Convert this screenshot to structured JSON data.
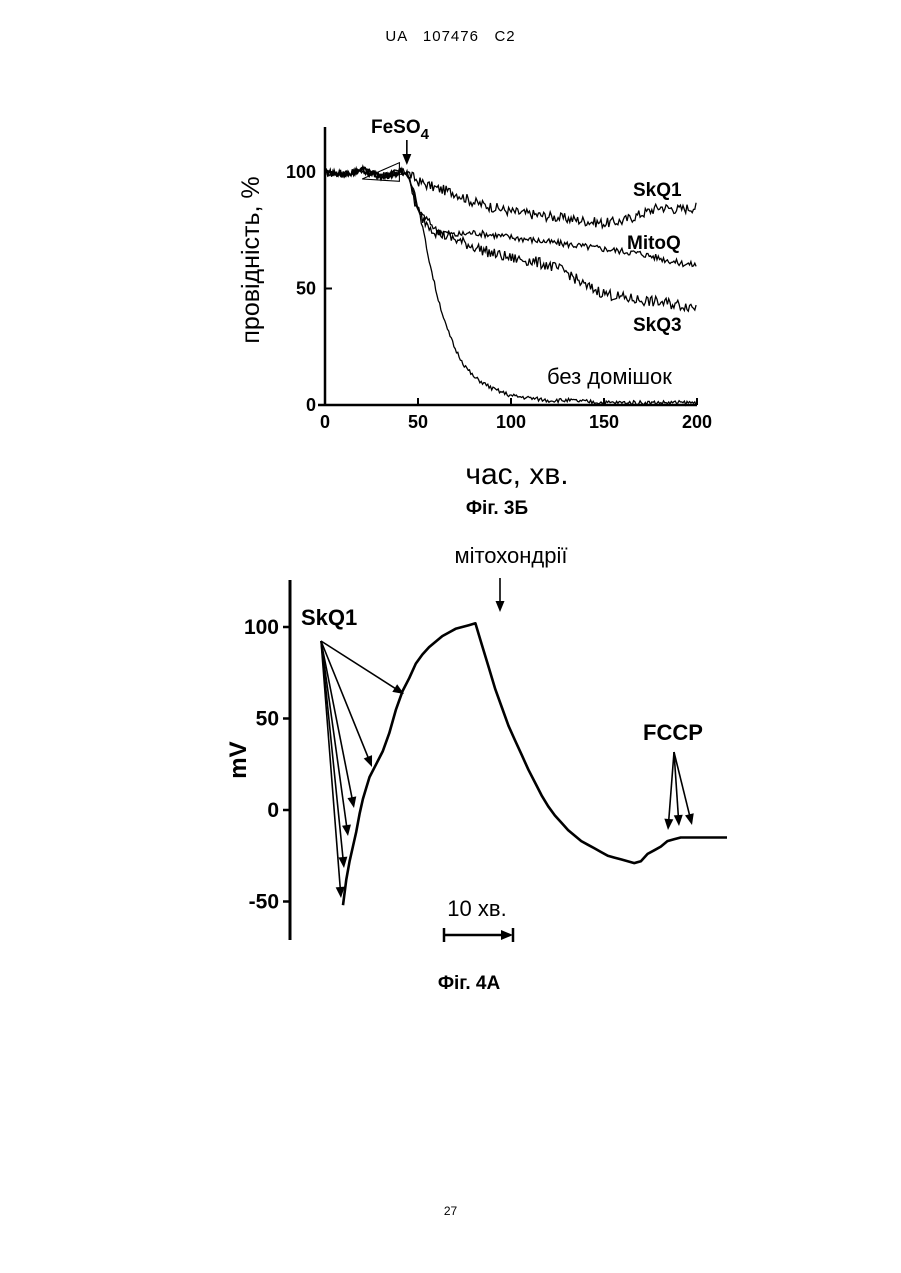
{
  "header": {
    "text": "UA   107476   C2"
  },
  "page_number": "27",
  "chart_data": [
    {
      "type": "line",
      "caption": "Фіг. 3Б",
      "xlabel": "час, хв.",
      "ylabel": "провідність, %",
      "xlim": [
        0,
        200
      ],
      "ylim": [
        0,
        120
      ],
      "xticks": [
        "0",
        "50",
        "100",
        "150",
        "200"
      ],
      "yticks": [
        "0",
        "50",
        "100"
      ],
      "annotation": "FeSO",
      "annotation_sub": "4",
      "annotation_x": 44,
      "series": [
        {
          "name": "SkQ1",
          "x": [
            0,
            10,
            20,
            30,
            40,
            44,
            50,
            60,
            70,
            80,
            90,
            100,
            110,
            120,
            130,
            140,
            150,
            160,
            170,
            180,
            190,
            200
          ],
          "y": [
            100,
            99,
            101,
            98,
            100,
            100,
            96,
            93,
            91,
            87,
            85,
            83,
            82,
            81,
            80,
            79,
            78,
            79,
            82,
            85,
            84,
            85
          ]
        },
        {
          "name": "MitoQ",
          "x": [
            0,
            10,
            20,
            30,
            40,
            44,
            50,
            60,
            70,
            80,
            90,
            100,
            110,
            120,
            130,
            140,
            150,
            160,
            170,
            180,
            190,
            200
          ],
          "y": [
            100,
            99,
            101,
            98,
            100,
            100,
            84,
            75,
            73,
            74,
            73,
            72,
            71,
            70,
            69,
            68,
            67,
            66,
            65,
            63,
            61,
            60
          ]
        },
        {
          "name": "SkQ3",
          "x": [
            0,
            10,
            20,
            30,
            40,
            44,
            50,
            60,
            70,
            80,
            90,
            100,
            110,
            120,
            130,
            140,
            150,
            160,
            170,
            180,
            190,
            200
          ],
          "y": [
            100,
            99,
            101,
            98,
            100,
            100,
            82,
            74,
            71,
            68,
            65,
            63,
            62,
            60,
            57,
            51,
            48,
            46,
            45,
            44,
            43,
            42
          ]
        },
        {
          "name": "без домішок",
          "x": [
            0,
            10,
            20,
            30,
            40,
            44,
            48,
            52,
            56,
            60,
            65,
            70,
            75,
            80,
            90,
            100,
            110,
            120,
            130,
            150,
            170,
            200
          ],
          "y": [
            100,
            99,
            101,
            98,
            100,
            100,
            92,
            78,
            62,
            48,
            34,
            24,
            17,
            12,
            7,
            4,
            3,
            2,
            2,
            1,
            1,
            1
          ]
        }
      ]
    },
    {
      "type": "line",
      "caption": "Фіг. 4А",
      "ylabel": "mV",
      "ylim": [
        -60,
        120
      ],
      "yticks": [
        "-50",
        "0",
        "50",
        "100"
      ],
      "scale_bar": "10 хв.",
      "annotations": [
        "SkQ1",
        "мітохондрії",
        "FCCP"
      ],
      "series": [
        {
          "x": [
            0,
            0.5,
            1,
            1.5,
            2,
            2.5,
            3,
            3.5,
            4,
            5,
            6,
            7,
            8,
            9,
            10,
            11,
            12,
            13,
            14,
            15,
            16,
            17,
            18,
            19,
            20,
            21,
            22,
            23,
            24,
            25,
            26,
            27,
            28,
            29,
            30,
            31,
            32,
            33,
            34,
            35,
            36,
            37,
            38,
            39,
            40,
            41,
            42,
            43,
            44,
            45,
            46,
            47,
            48,
            49,
            50,
            51,
            52,
            53,
            54,
            55,
            56,
            57,
            58
          ],
          "y": [
            -52,
            -38,
            -28,
            -20,
            -12,
            -2,
            6,
            12,
            18,
            25,
            32,
            42,
            55,
            65,
            72,
            80,
            85,
            89,
            92,
            95,
            97,
            99,
            100,
            101,
            102,
            90,
            78,
            66,
            56,
            46,
            38,
            30,
            22,
            15,
            8,
            2,
            -3,
            -7,
            -11,
            -14,
            -17,
            -19,
            -21,
            -23,
            -25,
            -26,
            -27,
            -28,
            -29,
            -28,
            -24,
            -22,
            -20,
            -17,
            -16,
            -15,
            -15,
            -15,
            -15,
            -15,
            -15,
            -15,
            -15
          ]
        }
      ]
    }
  ]
}
